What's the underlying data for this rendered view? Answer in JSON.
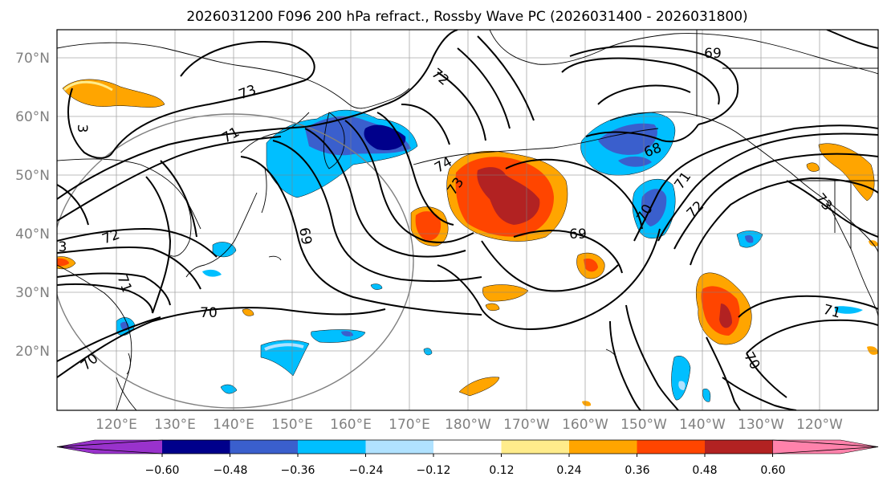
{
  "title": "2026031200 F096 200 hPa refract., Rossby Wave PC (2026031400 - 2026031800)",
  "lat_labels": [
    "70°N",
    "60°N",
    "50°N",
    "40°N",
    "30°N",
    "20°N"
  ],
  "lon_labels": [
    "120°E",
    "130°E",
    "140°E",
    "150°E",
    "160°E",
    "170°E",
    "180°W",
    "170°W",
    "160°W",
    "150°W",
    "140°W",
    "130°W",
    "120°W"
  ],
  "contour_labels": [
    "73",
    "71",
    "72",
    "74",
    "73",
    "69",
    "70",
    "70",
    "69",
    "68",
    "70",
    "71",
    "72",
    "73",
    "69",
    "71",
    "70",
    "3",
    "72",
    "71",
    "3"
  ],
  "colorbar": {
    "ticks": [
      "−0.60",
      "−0.48",
      "−0.36",
      "−0.24",
      "−0.12",
      "0.12",
      "0.24",
      "0.36",
      "0.48",
      "0.60"
    ],
    "colors": [
      "#9932cc",
      "#00008b",
      "#3a5fcd",
      "#00bfff",
      "#b0e2ff",
      "#ffffff",
      "#ffec8b",
      "#ffa500",
      "#ff4500",
      "#b22222",
      "#ff82ab"
    ]
  },
  "palette": {
    "dark_blue": "#00008b",
    "blue": "#3a5fcd",
    "sky": "#00bfff",
    "light_sky": "#b0e2ff",
    "light_yellow": "#ffec8b",
    "orange": "#ffa500",
    "red_orange": "#ff4500",
    "dark_red": "#b22222"
  }
}
